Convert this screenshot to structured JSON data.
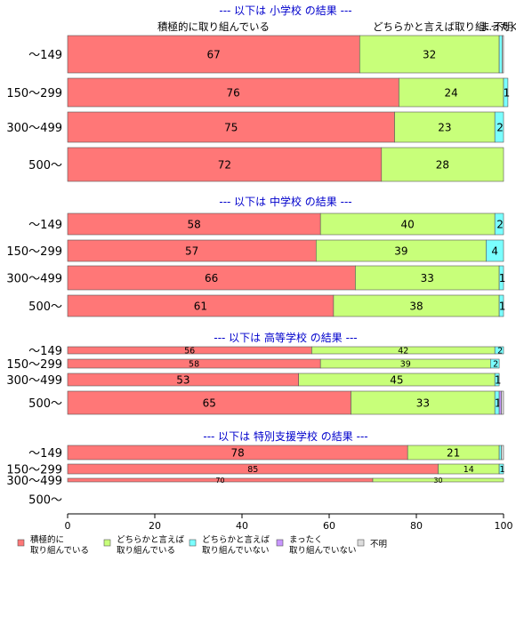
{
  "chart_data": {
    "type": "bar",
    "orientation": "horizontal",
    "stacked": true,
    "xlim": [
      0,
      100
    ],
    "xticks": [
      0,
      20,
      40,
      60,
      80,
      100
    ],
    "legend_position": "bottom",
    "column_headers": [
      "積極的に取り組んでいる",
      "どちらかと言えば取り組…",
      "まったく…",
      "不明"
    ],
    "series": [
      {
        "name": "積極的に\n取り組んでいる",
        "color": "#ff7777"
      },
      {
        "name": "どちらかと言えば\n取り組んでいる",
        "color": "#c8ff7a"
      },
      {
        "name": "どちらかと言えば\n取り組んでいない",
        "color": "#7affff"
      },
      {
        "name": "まったく\n取り組んでいない",
        "color": "#c896ff"
      },
      {
        "name": "不明",
        "color": "#dddddd"
      }
    ],
    "groups": [
      {
        "title": "--- 以下は 小学校 の結果 ---",
        "rows": [
          {
            "category": "～149",
            "values": [
              67,
              32,
              0.7,
              0,
              0.3
            ],
            "labels": [
              "67",
              "32",
              "",
              "",
              ""
            ]
          },
          {
            "category": "150～299",
            "values": [
              76,
              24,
              1,
              0,
              0
            ],
            "labels": [
              "76",
              "24",
              "1",
              "",
              ""
            ]
          },
          {
            "category": "300～499",
            "values": [
              75,
              23,
              2,
              0,
              0
            ],
            "labels": [
              "75",
              "23",
              "2",
              "",
              ""
            ]
          },
          {
            "category": "500～",
            "values": [
              72,
              28,
              0,
              0,
              0
            ],
            "labels": [
              "72",
              "28",
              "",
              "",
              ""
            ]
          }
        ]
      },
      {
        "title": "--- 以下は 中学校 の結果 ---",
        "rows": [
          {
            "category": "～149",
            "values": [
              58,
              40,
              2,
              0,
              0
            ],
            "labels": [
              "58",
              "40",
              "2",
              "",
              ""
            ]
          },
          {
            "category": "150～299",
            "values": [
              57,
              39,
              4,
              0,
              0
            ],
            "labels": [
              "57",
              "39",
              "4",
              "",
              ""
            ]
          },
          {
            "category": "300～499",
            "values": [
              66,
              33,
              1,
              0,
              0
            ],
            "labels": [
              "66",
              "33",
              "1",
              "",
              ""
            ]
          },
          {
            "category": "500～",
            "values": [
              61,
              38,
              1,
              0,
              0
            ],
            "labels": [
              "61",
              "38",
              "1",
              "",
              ""
            ]
          }
        ]
      },
      {
        "title": "--- 以下は 高等学校 の結果 ---",
        "rows": [
          {
            "category": "～149",
            "values": [
              56,
              42,
              2,
              0,
              0
            ],
            "labels": [
              "56",
              "42",
              "2",
              "",
              ""
            ]
          },
          {
            "category": "150～299",
            "values": [
              58,
              39,
              2,
              0,
              0
            ],
            "labels": [
              "58",
              "39",
              "2",
              "",
              ""
            ]
          },
          {
            "category": "300～499",
            "values": [
              53,
              45,
              1,
              0,
              0
            ],
            "labels": [
              "53",
              "45",
              "1",
              "",
              ""
            ]
          },
          {
            "category": "500～",
            "values": [
              65,
              33,
              1,
              0.5,
              0.5
            ],
            "labels": [
              "65",
              "33",
              "1",
              "",
              ""
            ]
          }
        ]
      },
      {
        "title": "--- 以下は 特別支援学校 の結果 ---",
        "rows": [
          {
            "category": "～149",
            "values": [
              78,
              21,
              0.5,
              0,
              0.5
            ],
            "labels": [
              "78",
              "21",
              "",
              "",
              ""
            ]
          },
          {
            "category": "150～299",
            "values": [
              85,
              14,
              1,
              0,
              0
            ],
            "labels": [
              "85",
              "14",
              "1",
              "",
              ""
            ]
          },
          {
            "category": "300～499",
            "values": [
              70,
              30,
              0,
              0,
              0
            ],
            "labels": [
              "70",
              "30",
              "",
              "",
              ""
            ]
          },
          {
            "category": "500～",
            "values": [],
            "labels": []
          }
        ]
      }
    ]
  }
}
